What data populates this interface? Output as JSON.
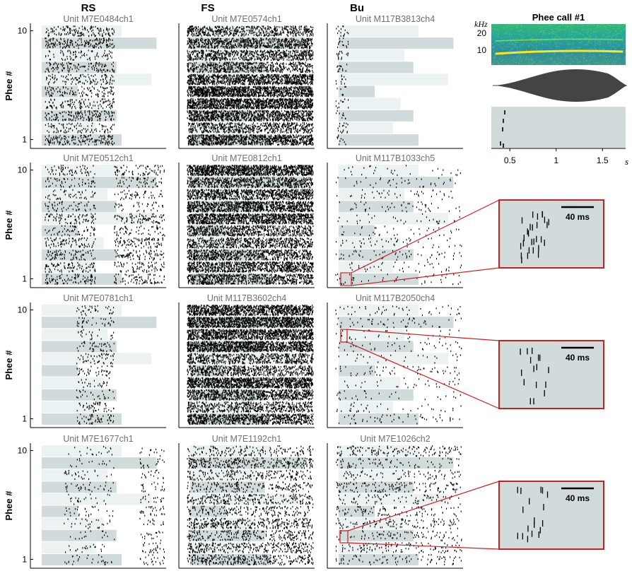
{
  "figure": {
    "column_titles": [
      "RS",
      "FS",
      "Bu"
    ],
    "ylabel": "Phee #",
    "ytick_labels": [
      "10",
      "1"
    ],
    "colors": {
      "stim_dark": "#d1dbdb",
      "stim_light": "#ecf1f1",
      "spike": "#000000",
      "unit_label": "#707070",
      "zoom_box": "#cc2020",
      "waveform": "#444444"
    }
  },
  "chart_data": [
    {
      "type": "raster",
      "title": "Unit M7E0484ch1",
      "ylabel": "Phee #",
      "ylim": [
        1,
        10
      ],
      "yticks": [
        1,
        10
      ],
      "trials": [
        1,
        2,
        3,
        4,
        5,
        6,
        7,
        8,
        9,
        10
      ],
      "spike_density": "medium",
      "active_windows": [
        [
          0.05,
          0.6
        ]
      ]
    },
    {
      "type": "raster",
      "title": "Unit M7E0574ch1",
      "ylim": [
        1,
        10
      ],
      "spike_density": "very high",
      "active_windows": [
        [
          0.0,
          1.0
        ]
      ]
    },
    {
      "type": "raster",
      "title": "Unit M117B3813ch4",
      "ylim": [
        1,
        10
      ],
      "spike_density": "very low",
      "active_windows": [
        [
          0.0,
          0.1
        ]
      ]
    },
    {
      "type": "raster",
      "title": "Unit M7E0512ch1",
      "ylabel": "Phee #",
      "ylim": [
        1,
        10
      ],
      "yticks": [
        1,
        10
      ],
      "spike_density": "medium",
      "active_windows": [
        [
          0.05,
          0.45
        ],
        [
          0.6,
          1.0
        ]
      ]
    },
    {
      "type": "raster",
      "title": "Unit M7E0812ch1",
      "ylim": [
        1,
        10
      ],
      "spike_density": "very high",
      "active_windows": [
        [
          0.0,
          1.0
        ]
      ]
    },
    {
      "type": "raster",
      "title": "Unit M117B1033ch5",
      "ylim": [
        1,
        10
      ],
      "spike_density": "low",
      "active_windows": [
        [
          0.0,
          1.0
        ]
      ],
      "zoom": {
        "trial": 1,
        "scale_bar": "40 ms"
      }
    },
    {
      "type": "raster",
      "title": "Unit M7E0781ch1",
      "ylabel": "Phee #",
      "ylim": [
        1,
        10
      ],
      "yticks": [
        1,
        10
      ],
      "spike_density": "low",
      "active_windows": [
        [
          0.3,
          0.6
        ]
      ]
    },
    {
      "type": "raster",
      "title": "Unit M117B3602ch4",
      "ylim": [
        1,
        10
      ],
      "spike_density": "very high",
      "active_windows": [
        [
          0.0,
          1.0
        ]
      ]
    },
    {
      "type": "raster",
      "title": "Unit M117B2050ch4",
      "ylim": [
        1,
        10
      ],
      "spike_density": "low",
      "active_windows": [
        [
          0.0,
          1.0
        ]
      ],
      "zoom": {
        "trial": 7,
        "scale_bar": "40 ms"
      }
    },
    {
      "type": "raster",
      "title": "Unit M7E1677ch1",
      "ylabel": "Phee #",
      "ylim": [
        1,
        10
      ],
      "yticks": [
        1,
        10
      ],
      "spike_density": "low",
      "active_windows": [
        [
          0.2,
          0.6
        ],
        [
          0.8,
          1.0
        ]
      ]
    },
    {
      "type": "raster",
      "title": "Unit M7E1192ch1",
      "ylim": [
        1,
        10
      ],
      "spike_density": "high",
      "active_windows": [
        [
          0.0,
          1.0
        ]
      ]
    },
    {
      "type": "raster",
      "title": "Unit M7E1026ch2",
      "ylim": [
        1,
        10
      ],
      "spike_density": "medium",
      "active_windows": [
        [
          0.0,
          1.0
        ]
      ],
      "zoom": {
        "trial": 2,
        "scale_bar": "40 ms"
      }
    },
    {
      "type": "spectrogram",
      "title": "Phee call #1",
      "ylabel": "kHz",
      "yticks": [
        10,
        20
      ],
      "xlabel": "s",
      "xticks": [
        0.5,
        1,
        1.5
      ],
      "xlim": [
        0.3,
        1.75
      ],
      "fundamental_khz": 8
    }
  ]
}
